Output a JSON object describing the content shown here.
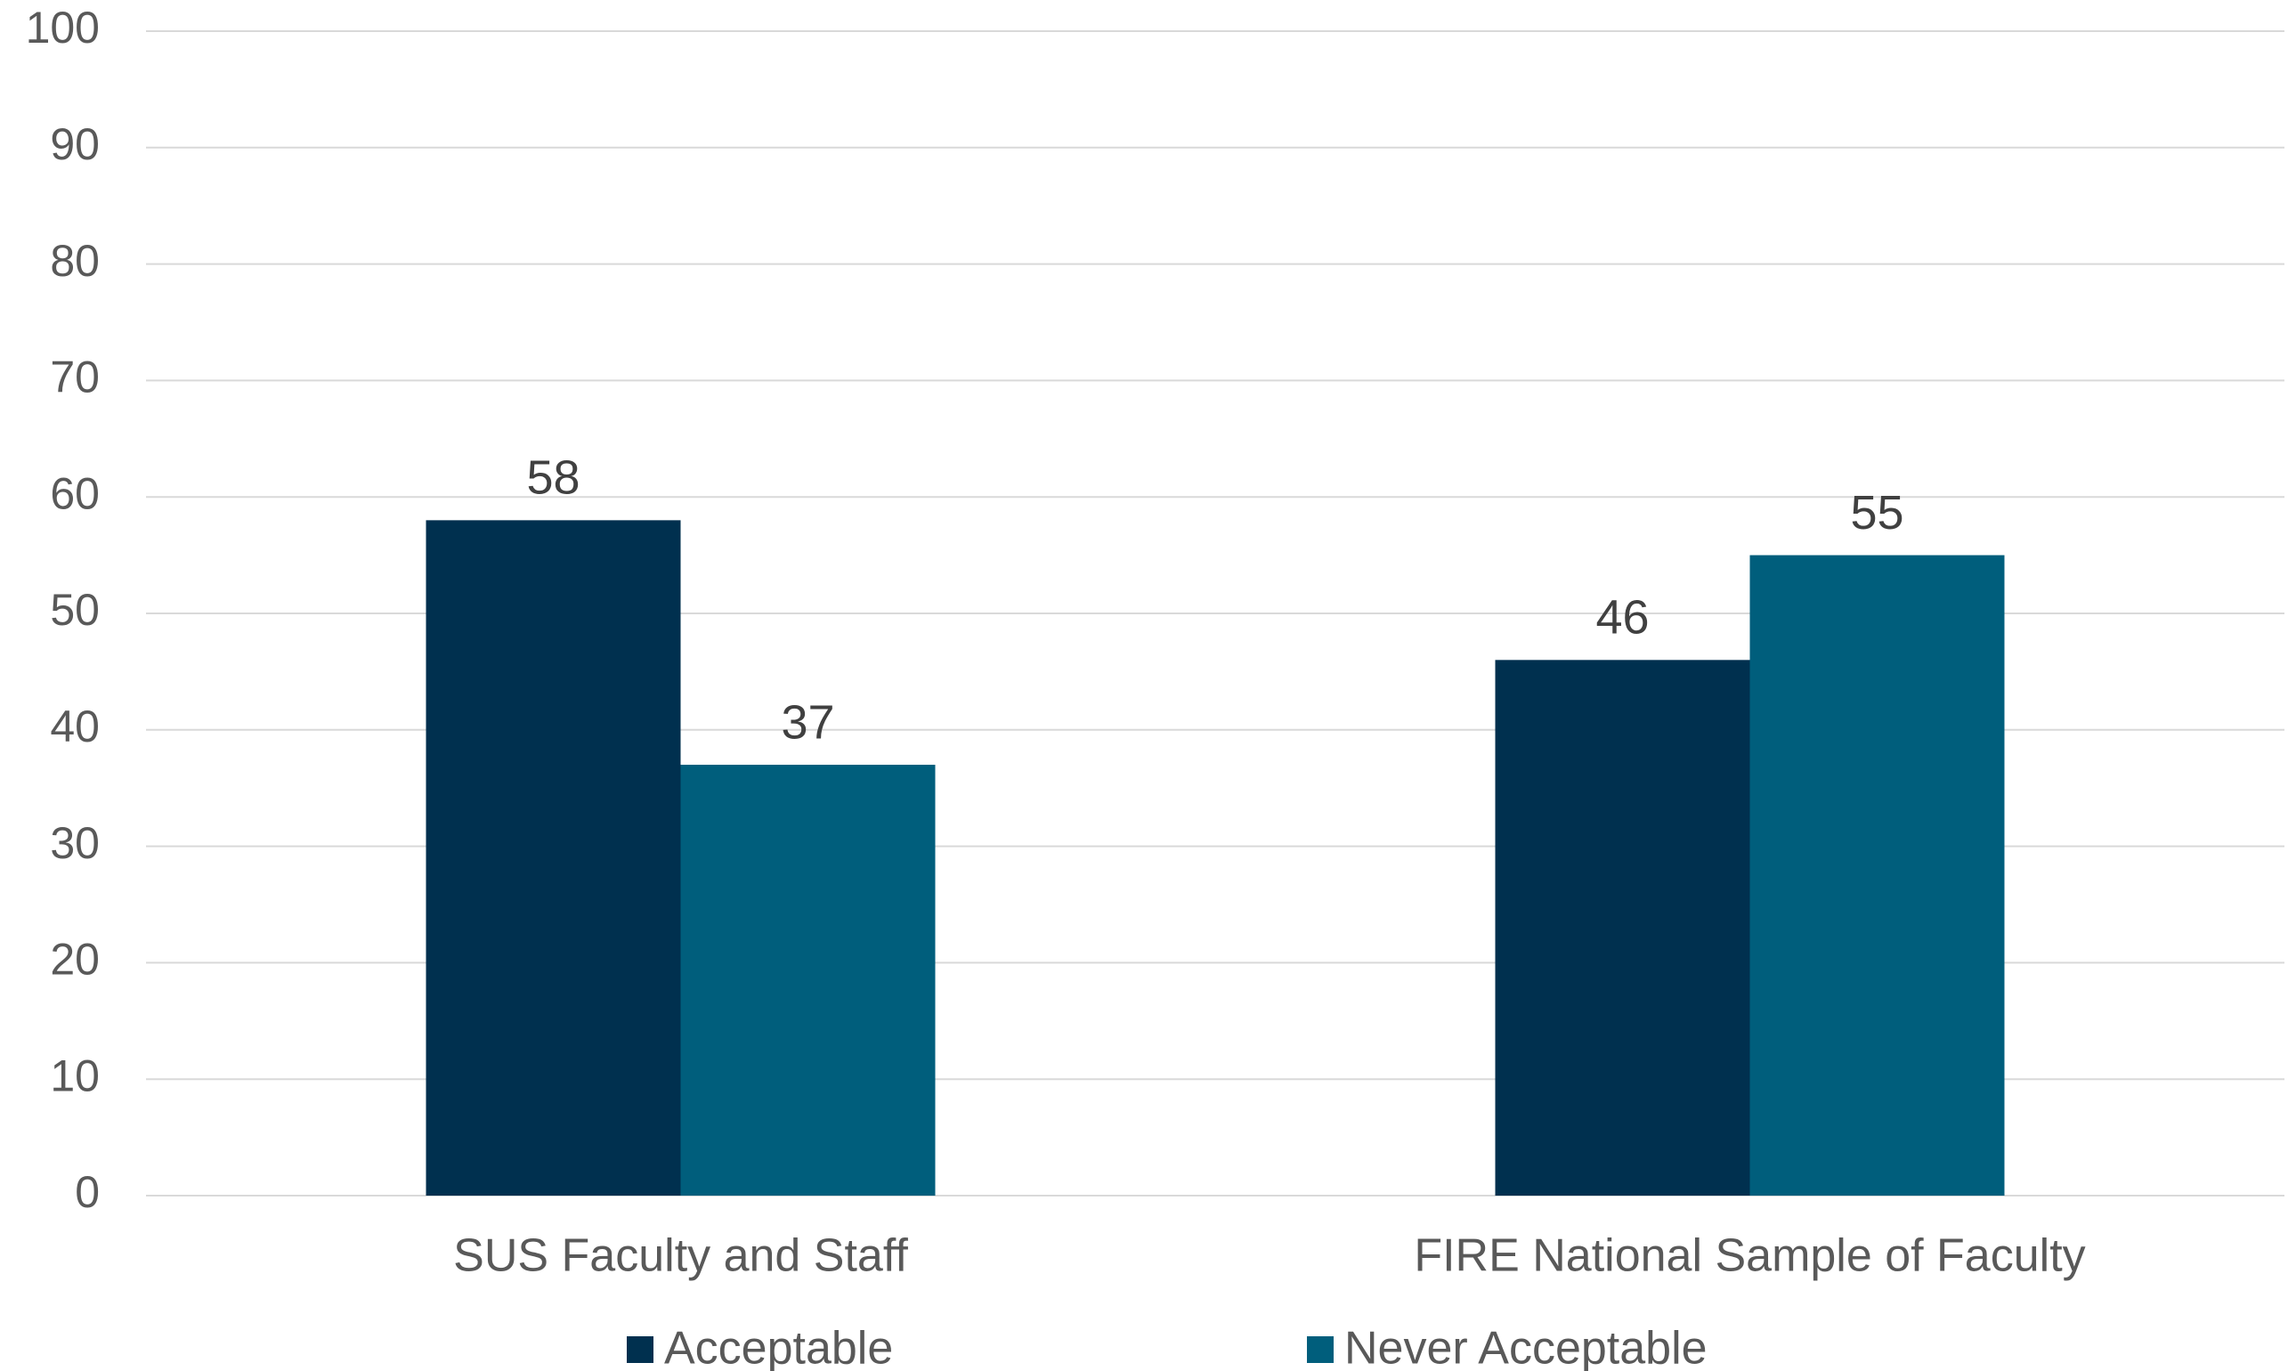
{
  "chart_data": {
    "type": "bar",
    "categories": [
      "SUS Faculty and Staff",
      "FIRE National Sample of Faculty"
    ],
    "series": [
      {
        "name": "Acceptable",
        "color": "#00304f",
        "values": [
          58,
          46
        ]
      },
      {
        "name": "Never Acceptable",
        "color": "#005e7c",
        "values": [
          37,
          55
        ]
      }
    ],
    "ylim": [
      0,
      100
    ],
    "yticks": [
      0,
      10,
      20,
      30,
      40,
      50,
      60,
      70,
      80,
      90,
      100
    ],
    "grid": true,
    "legend": "bottom"
  }
}
